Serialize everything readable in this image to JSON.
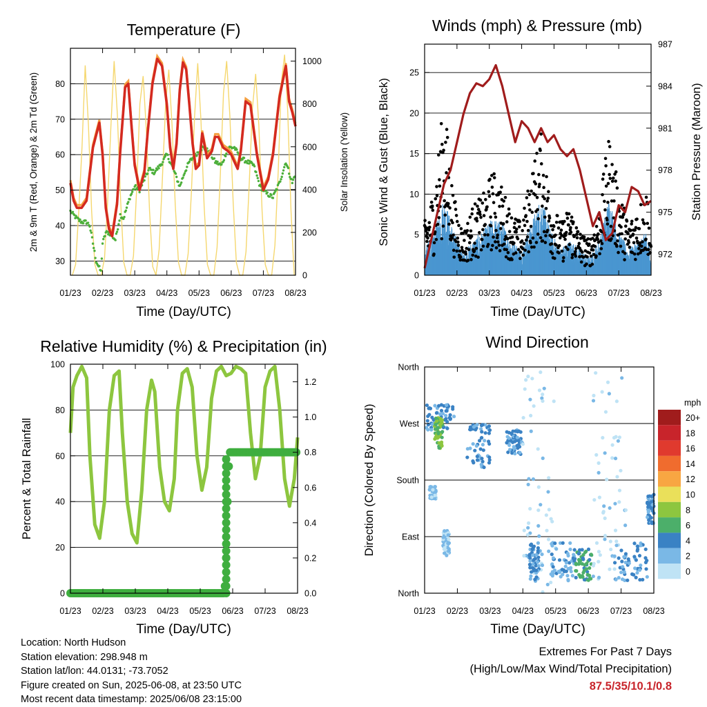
{
  "info": {
    "location": "Location: North Hudson",
    "elevation": "Station elevation: 298.948 m",
    "latlon": "Station lat/lon: 44.0131; -73.7052",
    "created": "Figure created on Sun, 2025-06-08, at 23:50 UTC",
    "recent": "Most recent data timestamp: 2025/06/08 23:15:00"
  },
  "extremes": {
    "line1": "Extremes For Past 7 Days",
    "line2": "(High/Low/Max Wind/Total Precipitation)",
    "values": "87.5/35/10.1/0.8"
  },
  "chart_data": [
    {
      "type": "line",
      "title": "Temperature (F)",
      "xlabel": "Time (Day/UTC)",
      "ylabel": "2m & 9m T (Red, Orange) & 2m Td (Green)",
      "ylabel_right": "Solar Insolation (Yellow)",
      "x_ticks": [
        "01/23",
        "02/23",
        "03/23",
        "04/23",
        "05/23",
        "06/23",
        "07/23",
        "08/23"
      ],
      "xlim_days": [
        0,
        7
      ],
      "ylim": [
        26,
        90
      ],
      "y_ticks": [
        30,
        40,
        50,
        60,
        70,
        80
      ],
      "ylim_right": [
        0,
        1060
      ],
      "y_ticks_right": [
        0,
        200,
        400,
        600,
        800,
        1000
      ],
      "grid": "horizontal",
      "colors": {
        "t2m": "#d42a20",
        "t9m": "#f5a040",
        "td": "#4caf3a",
        "solar": "#f5d76e"
      },
      "series": [
        {
          "key": "t2m",
          "x": [
            0,
            0.1,
            0.2,
            0.35,
            0.5,
            0.7,
            0.9,
            1.0,
            1.1,
            1.2,
            1.3,
            1.45,
            1.55,
            1.7,
            1.8,
            1.9,
            2.0,
            2.15,
            2.3,
            2.4,
            2.55,
            2.7,
            2.85,
            3.0,
            3.1,
            3.2,
            3.3,
            3.4,
            3.5,
            3.6,
            3.7,
            3.8,
            3.9,
            4.0,
            4.1,
            4.25,
            4.4,
            4.5,
            4.6,
            4.75,
            4.9,
            5.0,
            5.1,
            5.2,
            5.3,
            5.45,
            5.6,
            5.8,
            6.0,
            6.15,
            6.3,
            6.5,
            6.7,
            6.8,
            6.9,
            7.0
          ],
          "values": [
            52,
            47,
            45,
            45,
            47,
            62,
            69,
            60,
            45,
            39,
            37,
            46,
            61,
            79,
            80,
            68,
            57,
            50,
            55,
            66,
            80,
            87,
            85,
            74,
            62,
            56,
            63,
            78,
            86,
            84,
            74,
            63,
            56,
            57,
            66,
            59,
            61,
            65,
            65,
            62,
            61,
            60,
            58,
            56,
            61,
            75,
            74,
            60,
            50,
            53,
            60,
            76,
            85,
            75,
            72,
            68
          ]
        },
        {
          "key": "td",
          "x": [
            0,
            0.2,
            0.35,
            0.5,
            0.6,
            0.7,
            0.8,
            0.95,
            1.0,
            1.1,
            1.2,
            1.3,
            1.4,
            1.55,
            1.65,
            1.75,
            1.85,
            2.0,
            2.15,
            2.3,
            2.45,
            2.6,
            2.8,
            3.0,
            3.2,
            3.4,
            3.55,
            3.7,
            3.9,
            4.1,
            4.3,
            4.5,
            4.7,
            4.9,
            5.1,
            5.3,
            5.5,
            5.7,
            5.9,
            6.1,
            6.3,
            6.5,
            6.7,
            6.9,
            7.0
          ],
          "values": [
            44,
            42,
            41,
            41,
            40,
            35,
            30,
            27,
            35,
            38,
            38,
            37,
            36,
            43,
            42,
            45,
            48,
            51,
            50,
            53,
            56,
            55,
            57,
            60,
            56,
            51,
            55,
            58,
            60,
            62,
            61,
            58,
            57,
            62,
            62,
            59,
            58,
            57,
            51,
            49,
            48,
            52,
            58,
            52,
            55
          ]
        },
        {
          "key": "solar",
          "x": [
            0.06,
            0.16,
            0.26,
            0.36,
            0.46,
            0.56,
            0.66,
            0.76,
            0.86,
            0.96,
            1.06,
            1.16,
            1.26,
            1.36,
            1.46,
            1.56,
            1.66,
            1.76,
            1.86,
            1.96,
            2.06,
            2.16,
            2.26,
            2.36,
            2.46,
            2.56,
            2.66,
            2.76,
            2.86,
            2.96,
            3.06,
            3.16,
            3.26,
            3.36,
            3.46,
            3.56,
            3.66,
            3.76,
            3.86,
            3.96,
            4.06,
            4.16,
            4.26,
            4.36,
            4.46,
            4.56,
            4.66,
            4.76,
            4.86,
            4.96,
            5.06,
            5.16,
            5.26,
            5.36,
            5.46,
            5.56,
            5.66,
            5.76,
            5.86,
            5.96,
            6.06,
            6.16,
            6.26,
            6.36,
            6.46,
            6.56,
            6.66,
            6.76,
            6.86,
            6.96
          ],
          "values": [
            0,
            50,
            300,
            600,
            980,
            700,
            300,
            50,
            0,
            0,
            80,
            350,
            700,
            1000,
            750,
            350,
            60,
            0,
            0,
            90,
            400,
            800,
            930,
            680,
            300,
            40,
            0,
            120,
            450,
            800,
            960,
            700,
            330,
            60,
            0,
            0,
            100,
            380,
            740,
            990,
            720,
            320,
            50,
            0,
            0,
            130,
            460,
            850,
            1000,
            740,
            340,
            60,
            0,
            0,
            110,
            420,
            780,
            940,
            700,
            300,
            50,
            0,
            0,
            140,
            480,
            900,
            1030,
            760,
            300,
            0
          ]
        }
      ]
    },
    {
      "type": "scatter",
      "title": "Winds (mph) & Pressure (mb)",
      "xlabel": "Time (Day/UTC)",
      "ylabel": "Sonic Wind & Gust (Blue, Black)",
      "ylabel_right": "Station Pressure (Maroon)",
      "x_ticks": [
        "01/23",
        "02/23",
        "03/23",
        "04/23",
        "05/23",
        "06/23",
        "07/23",
        "08/23"
      ],
      "xlim_days": [
        0,
        7
      ],
      "ylim": [
        0,
        28.5
      ],
      "y_ticks": [
        0,
        5,
        10,
        15,
        20,
        25
      ],
      "ylim_right": [
        970.5,
        987
      ],
      "y_ticks_right": [
        972,
        975,
        978,
        981,
        984,
        987
      ],
      "grid": "horizontal",
      "colors": {
        "wind": "#4a96d0",
        "gust": "#000000",
        "pressure": "#a01c1c"
      },
      "series": [
        {
          "key": "pressure",
          "x": [
            0,
            0.2,
            0.4,
            0.6,
            0.8,
            1.0,
            1.2,
            1.4,
            1.6,
            1.8,
            2.0,
            2.2,
            2.4,
            2.6,
            2.8,
            3.0,
            3.2,
            3.4,
            3.6,
            3.8,
            4.0,
            4.2,
            4.4,
            4.6,
            4.8,
            5.0,
            5.2,
            5.4,
            5.6,
            5.8,
            6.0,
            6.2,
            6.4,
            6.6,
            6.8,
            7.0
          ],
          "values": [
            971,
            973,
            975,
            977,
            978,
            980,
            982,
            983.5,
            984.2,
            984,
            984.5,
            985.5,
            984,
            982,
            980,
            981.5,
            981,
            980,
            981,
            980,
            980.5,
            979.5,
            979,
            979.5,
            978,
            976,
            974,
            975,
            973,
            973.5,
            975.5,
            975,
            976.8,
            976.5,
            975.5,
            975.8
          ]
        },
        {
          "key": "wind_envelope",
          "x": [
            0,
            0.3,
            0.6,
            0.9,
            1.2,
            1.5,
            1.8,
            2.1,
            2.4,
            2.7,
            3.0,
            3.3,
            3.6,
            3.9,
            4.2,
            4.5,
            4.8,
            5.1,
            5.4,
            5.7,
            6.0,
            6.3,
            6.6,
            6.9,
            7.0
          ],
          "values": [
            3,
            5,
            9,
            5,
            2.5,
            4,
            5,
            6.5,
            6,
            4,
            3,
            6,
            9,
            5,
            3,
            4,
            3,
            2,
            4,
            9,
            5,
            3,
            4,
            5,
            1
          ]
        },
        {
          "key": "gust_envelope",
          "x": [
            0,
            0.3,
            0.6,
            0.9,
            1.2,
            1.5,
            1.8,
            2.1,
            2.4,
            2.7,
            3.0,
            3.3,
            3.6,
            3.9,
            4.2,
            4.5,
            4.8,
            5.1,
            5.4,
            5.7,
            6.0,
            6.3,
            6.6,
            6.9,
            7.0
          ],
          "values": [
            6,
            10,
            20,
            9,
            5,
            8,
            9,
            12,
            10,
            7,
            6,
            12,
            16,
            9,
            6,
            8,
            5,
            4,
            8,
            16,
            10,
            6,
            8,
            10,
            3
          ]
        }
      ]
    },
    {
      "type": "line",
      "title": "Relative Humidity (%) & Precipitation (in)",
      "xlabel": "Time (Day/UTC)",
      "ylabel": "Percent & Total Rainfall",
      "x_ticks": [
        "01/23",
        "02/23",
        "03/23",
        "04/23",
        "05/23",
        "06/23",
        "07/23",
        "08/23"
      ],
      "xlim_days": [
        0,
        7
      ],
      "ylim": [
        0,
        100
      ],
      "y_ticks": [
        0,
        20,
        40,
        60,
        80,
        100
      ],
      "ylim_right": [
        0,
        1.3
      ],
      "y_ticks_right": [
        0.0,
        0.2,
        0.4,
        0.6,
        0.8,
        1.0,
        1.2
      ],
      "grid": "horizontal",
      "colors": {
        "rh": "#8dc63f",
        "precip": "#3fae3f"
      },
      "series": [
        {
          "key": "rh",
          "x": [
            0,
            0.08,
            0.2,
            0.35,
            0.5,
            0.6,
            0.75,
            0.9,
            1.05,
            1.2,
            1.35,
            1.5,
            1.6,
            1.75,
            1.9,
            2.05,
            2.2,
            2.35,
            2.5,
            2.6,
            2.75,
            2.9,
            3.05,
            3.2,
            3.3,
            3.45,
            3.6,
            3.75,
            3.9,
            4.05,
            4.2,
            4.35,
            4.5,
            4.65,
            4.8,
            4.95,
            5.1,
            5.25,
            5.4,
            5.55,
            5.7,
            5.85,
            6.0,
            6.15,
            6.3,
            6.45,
            6.6,
            6.75,
            6.9,
            7.0
          ],
          "values": [
            70,
            90,
            95,
            99,
            94,
            60,
            30,
            24,
            40,
            80,
            95,
            97,
            70,
            40,
            26,
            22,
            45,
            80,
            93,
            88,
            55,
            40,
            36,
            50,
            80,
            96,
            98,
            90,
            60,
            45,
            55,
            85,
            97,
            99,
            95,
            96,
            99,
            98,
            96,
            70,
            50,
            60,
            90,
            97,
            99,
            80,
            50,
            38,
            50,
            68
          ]
        },
        {
          "key": "precip",
          "x": [
            0,
            4.75,
            4.8,
            4.85,
            4.9,
            7.0
          ],
          "values": [
            0,
            0,
            0.2,
            0.6,
            0.8,
            0.8
          ]
        }
      ]
    },
    {
      "type": "scatter",
      "title": "Wind Direction",
      "xlabel": "Time (Day/UTC)",
      "ylabel": "Direction (Colored By Speed)",
      "x_ticks": [
        "01/23",
        "02/23",
        "03/23",
        "04/23",
        "05/23",
        "06/23",
        "07/23",
        "08/23"
      ],
      "xlim_days": [
        0,
        7
      ],
      "y_ticks": [
        "North",
        "East",
        "South",
        "West",
        "North"
      ],
      "ylim": [
        0,
        360
      ],
      "grid": "horizontal",
      "legend_title": "mph",
      "legend": "right",
      "legend_labels": [
        "20+",
        "18",
        "16",
        "14",
        "12",
        "10",
        "8",
        "6",
        "4",
        "2",
        "0"
      ],
      "legend_colors": [
        "#a01c1c",
        "#c8242b",
        "#e03a2e",
        "#f06c2e",
        "#f8a642",
        "#eae05a",
        "#8dc63f",
        "#4caf6a",
        "#3a82c4",
        "#7ab8e6",
        "#bfe3f5"
      ],
      "clusters": [
        {
          "x": [
            0.05,
            0.9
          ],
          "dir": [
            260,
            300
          ],
          "speed": 4
        },
        {
          "x": [
            0.15,
            0.35
          ],
          "dir": [
            150,
            170
          ],
          "speed": 2
        },
        {
          "x": [
            0.55,
            0.75
          ],
          "dir": [
            60,
            100
          ],
          "speed": 2
        },
        {
          "x": [
            0.3,
            0.55
          ],
          "dir": [
            230,
            280
          ],
          "speed": 8
        },
        {
          "x": [
            1.3,
            2.0
          ],
          "dir": [
            200,
            270
          ],
          "speed": 4
        },
        {
          "x": [
            2.5,
            3.0
          ],
          "dir": [
            220,
            260
          ],
          "speed": 4
        },
        {
          "x": [
            3.0,
            4.0
          ],
          "dir": [
            0,
            360
          ],
          "speed": 1
        },
        {
          "x": [
            3.2,
            3.5
          ],
          "dir": [
            20,
            80
          ],
          "speed": 4
        },
        {
          "x": [
            3.8,
            4.6
          ],
          "dir": [
            20,
            80
          ],
          "speed": 3
        },
        {
          "x": [
            4.6,
            5.1
          ],
          "dir": [
            20,
            70
          ],
          "speed": 6
        },
        {
          "x": [
            5.1,
            6.2
          ],
          "dir": [
            0,
            360
          ],
          "speed": 1
        },
        {
          "x": [
            5.8,
            6.8
          ],
          "dir": [
            20,
            80
          ],
          "speed": 4
        },
        {
          "x": [
            6.8,
            7.0
          ],
          "dir": [
            110,
            160
          ],
          "speed": 4
        }
      ]
    }
  ]
}
